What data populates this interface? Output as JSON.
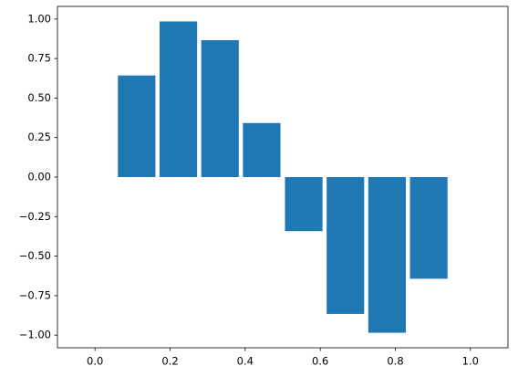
{
  "chart_data": {
    "type": "bar",
    "color": "#1f77b4",
    "bar_width": 0.1,
    "x": [
      0.111,
      0.222,
      0.333,
      0.444,
      0.556,
      0.667,
      0.778,
      0.889
    ],
    "values": [
      0.643,
      0.985,
      0.866,
      0.342,
      -0.342,
      -0.866,
      -0.985,
      -0.643
    ],
    "xlim": [
      -0.1,
      1.1
    ],
    "xticks": [
      {
        "value": 0,
        "label": "0.0"
      },
      0.2,
      0.4,
      0.6,
      0.8,
      {
        "value": 1,
        "label": "1.0"
      }
    ],
    "ylim": [
      -1.08,
      1.08
    ],
    "yticks": [
      {
        "value": -1,
        "label": "−1.00"
      },
      {
        "value": -0.75,
        "label": "−0.75"
      },
      {
        "value": -0.5,
        "label": "−0.50"
      },
      {
        "value": -0.25,
        "label": "−0.25"
      },
      {
        "value": 0,
        "label": "0.00"
      },
      {
        "value": 0.25,
        "label": "0.25"
      },
      {
        "value": 0.5,
        "label": "0.50"
      },
      {
        "value": 0.75,
        "label": "0.75"
      },
      {
        "value": 1,
        "label": "1.00"
      }
    ],
    "grid": false
  }
}
